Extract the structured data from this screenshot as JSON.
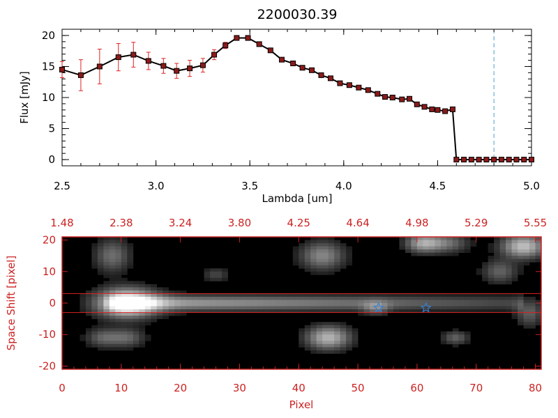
{
  "colors": {
    "axis_top": "#000000",
    "axis_bottom": "#cc2222",
    "error_bar": "#dd2222",
    "marker": "#8b1a1a",
    "dash_line": "#4a9fd0",
    "star": "#3a7fd0",
    "band_line": "#dd2222"
  },
  "chart_data": [
    {
      "type": "line",
      "title": "2200030.39",
      "xlabel": "Lambda [um]",
      "ylabel": "Flux [mJy]",
      "xlim": [
        2.5,
        5.0
      ],
      "ylim": [
        -1,
        21
      ],
      "xticks": [
        "2.5",
        "3.0",
        "3.5",
        "4.0",
        "4.5",
        "5.0"
      ],
      "xtick_values": [
        2.5,
        3.0,
        3.5,
        4.0,
        4.5,
        5.0
      ],
      "yticks": [
        "0",
        "5",
        "10",
        "15",
        "20"
      ],
      "ytick_values": [
        0,
        5,
        10,
        15,
        20
      ],
      "grid": false,
      "vline_x": 4.8,
      "x": [
        2.5,
        2.6,
        2.7,
        2.8,
        2.88,
        2.96,
        3.04,
        3.11,
        3.18,
        3.25,
        3.31,
        3.37,
        3.43,
        3.49,
        3.55,
        3.61,
        3.67,
        3.73,
        3.78,
        3.83,
        3.88,
        3.93,
        3.98,
        4.03,
        4.08,
        4.13,
        4.18,
        4.22,
        4.26,
        4.31,
        4.35,
        4.39,
        4.43,
        4.47,
        4.5,
        4.54,
        4.58,
        4.6,
        4.64,
        4.68,
        4.72,
        4.76,
        4.8,
        4.84,
        4.88,
        4.92,
        4.96,
        5.0
      ],
      "y": [
        14.5,
        13.6,
        15.0,
        16.5,
        16.9,
        15.9,
        15.1,
        14.3,
        14.7,
        15.2,
        16.9,
        18.4,
        19.6,
        19.6,
        18.6,
        17.6,
        16.1,
        15.5,
        14.8,
        14.4,
        13.6,
        13.1,
        12.3,
        12.0,
        11.6,
        11.2,
        10.6,
        10.1,
        10.0,
        9.7,
        9.8,
        8.9,
        8.5,
        8.1,
        8.0,
        7.8,
        8.1,
        0.0,
        0.0,
        0.0,
        0.0,
        0.0,
        0.0,
        0.0,
        0.0,
        0.0,
        0.0,
        0.0
      ],
      "yerr": [
        1.3,
        2.5,
        2.8,
        2.2,
        2.0,
        1.4,
        1.2,
        1.2,
        1.3,
        1.1,
        0.8,
        0.5,
        0.4,
        0.4,
        0.3,
        0.3,
        0.3,
        0.3,
        0.3,
        0.3,
        0.3,
        0.3,
        0.3,
        0.3,
        0.3,
        0.3,
        0.3,
        0.3,
        0.3,
        0.3,
        0.3,
        0.3,
        0.3,
        0.3,
        0.3,
        0.3,
        0.3,
        0.2,
        0.2,
        0.2,
        0.2,
        0.2,
        0.2,
        0.2,
        0.2,
        0.2,
        0.2,
        0.2
      ]
    },
    {
      "type": "heatmap",
      "xlabel": "Pixel",
      "ylabel": "Space Shift [pixel]",
      "xlim": [
        0,
        81
      ],
      "ylim": [
        -21,
        21
      ],
      "xticks": [
        "0",
        "10",
        "20",
        "30",
        "40",
        "50",
        "60",
        "70",
        "80"
      ],
      "xtick_values": [
        0,
        10,
        20,
        30,
        40,
        50,
        60,
        70,
        80
      ],
      "yticks": [
        "-20",
        "-10",
        "0",
        "10",
        "20"
      ],
      "ytick_values": [
        -20,
        -10,
        0,
        10,
        20
      ],
      "top_axis_ticks": [
        "1.48",
        "2.38",
        "3.24",
        "3.80",
        "4.25",
        "4.64",
        "4.98",
        "5.29",
        "5.55"
      ],
      "band": [
        -3,
        3
      ],
      "stars": [
        {
          "x": 53.5,
          "y": -1.5
        },
        {
          "x": 61.5,
          "y": -1.5
        }
      ],
      "blobs": [
        {
          "x": 11,
          "y": 0,
          "sx": 3.5,
          "sy": 3,
          "amp": 1.0
        },
        {
          "x": 45,
          "y": -11,
          "sx": 2.5,
          "sy": 2.5,
          "amp": 0.65
        },
        {
          "x": 8.5,
          "y": 15,
          "sx": 2,
          "sy": 3.5,
          "amp": 0.35
        },
        {
          "x": 7,
          "y": -11,
          "sx": 2,
          "sy": 2,
          "amp": 0.3
        },
        {
          "x": 11,
          "y": -11,
          "sx": 2,
          "sy": 2,
          "amp": 0.3
        },
        {
          "x": 44,
          "y": 15,
          "sx": 2.5,
          "sy": 3,
          "amp": 0.45
        },
        {
          "x": 61,
          "y": 19,
          "sx": 2,
          "sy": 2,
          "amp": 0.55
        },
        {
          "x": 65,
          "y": 19,
          "sx": 2.5,
          "sy": 2,
          "amp": 0.35
        },
        {
          "x": 78,
          "y": 18,
          "sx": 2.5,
          "sy": 2.5,
          "amp": 0.7
        },
        {
          "x": 74,
          "y": 10,
          "sx": 2,
          "sy": 2.5,
          "amp": 0.3
        },
        {
          "x": 53,
          "y": -1.5,
          "sx": 1.5,
          "sy": 1.5,
          "amp": 0.3
        },
        {
          "x": 66.5,
          "y": -11,
          "sx": 1.5,
          "sy": 1.5,
          "amp": 0.3
        },
        {
          "x": 26,
          "y": 9,
          "sx": 1.5,
          "sy": 1.5,
          "amp": 0.2
        },
        {
          "x": 79,
          "y": -3,
          "sx": 1.5,
          "sy": 3,
          "amp": 0.3
        }
      ],
      "trace": {
        "y": 0,
        "sy": 1.6,
        "start": 10,
        "end": 78,
        "amp_start": 0.6,
        "amp_end": 0.18
      }
    }
  ]
}
